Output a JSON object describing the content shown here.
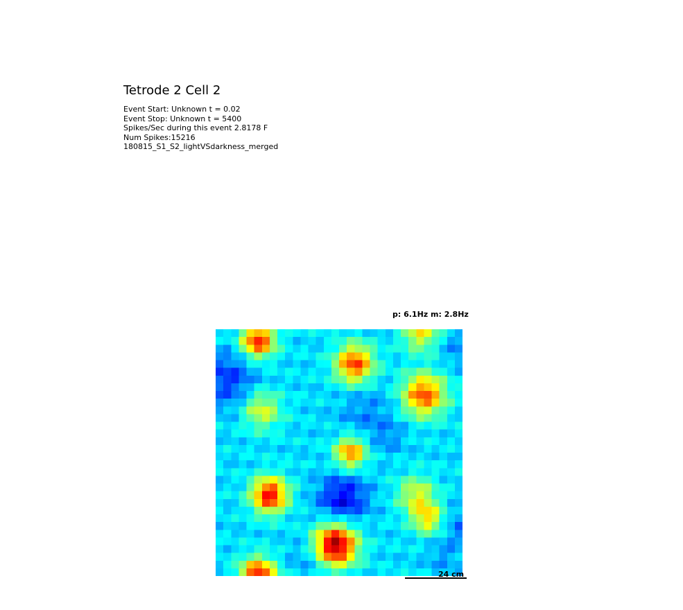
{
  "header": {
    "title": "Tetrode 2 Cell 2",
    "lines": [
      "Event Start: Unknown t = 0.02",
      "Event Stop: Unknown t = 5400",
      "Spikes/Sec during this event 2.8178 F",
      "Num Spikes:15216",
      "180815_S1_S2_lightVSdarkness_merged"
    ]
  },
  "chart_data": {
    "type": "heatmap",
    "title": "p: 6.1Hz m: 2.8Hz",
    "peak_rate_hz": 6.1,
    "mean_rate_hz": 2.8,
    "colormap": "jet",
    "value_units": "Hz",
    "grid": false,
    "scale_bar_label": "24 cm",
    "rows": 32,
    "cols": 32,
    "fields": [
      {
        "row": 1,
        "col": 5,
        "peak": 5.2,
        "spread": 1.5
      },
      {
        "row": 0,
        "col": 26,
        "peak": 3.8,
        "spread": 1.6
      },
      {
        "row": 4,
        "col": 17.5,
        "peak": 5.0,
        "spread": 1.7
      },
      {
        "row": 8,
        "col": 26.5,
        "peak": 4.9,
        "spread": 1.9
      },
      {
        "row": 10,
        "col": 5.5,
        "peak": 3.6,
        "spread": 1.7
      },
      {
        "row": 15.5,
        "col": 17,
        "peak": 4.6,
        "spread": 1.4
      },
      {
        "row": 21,
        "col": 6.5,
        "peak": 5.4,
        "spread": 1.6
      },
      {
        "row": 21,
        "col": 25.5,
        "peak": 3.6,
        "spread": 1.7
      },
      {
        "row": 24,
        "col": 27,
        "peak": 3.9,
        "spread": 1.4
      },
      {
        "row": 27.5,
        "col": 15,
        "peak": 6.1,
        "spread": 1.9
      },
      {
        "row": 31.5,
        "col": 5,
        "peak": 5.4,
        "spread": 1.6
      }
    ],
    "cold_spots": [
      {
        "row": 6,
        "col": 1,
        "depth": 1.0,
        "spread": 2.5
      },
      {
        "row": 21.5,
        "col": 16,
        "depth": 1.4,
        "spread": 2.2
      },
      {
        "row": 10.5,
        "col": 19,
        "depth": 0.5,
        "spread": 2.5
      },
      {
        "row": 13.5,
        "col": 22,
        "depth": 0.4,
        "spread": 1.5
      },
      {
        "row": 29,
        "col": 12,
        "depth": 0.5,
        "spread": 2.0
      },
      {
        "row": 2,
        "col": 31,
        "depth": 0.5,
        "spread": 1.5
      },
      {
        "row": 25,
        "col": 31.5,
        "depth": 0.6,
        "spread": 1.8
      },
      {
        "row": 29,
        "col": 29,
        "depth": 0.4,
        "spread": 1.5
      }
    ],
    "baseline_hz": 2.1
  }
}
